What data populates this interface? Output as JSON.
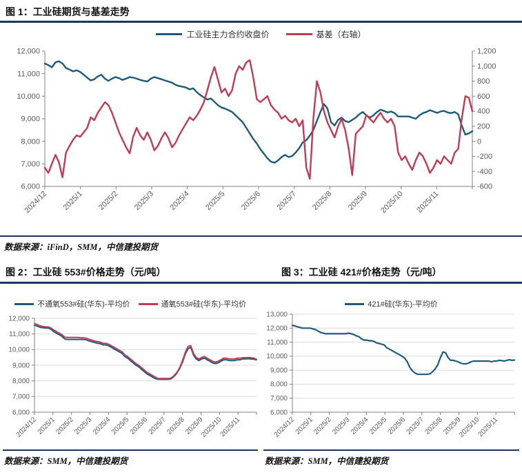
{
  "colors": {
    "navy_rule": "#17375e",
    "blue_line": "#1b5a7a",
    "red_line": "#c13a51",
    "axis_line": "#808080",
    "axis_text": "#595959",
    "grid": "#d9d9d9"
  },
  "figure1": {
    "title": "图 1：工业硅期货与基差走势",
    "source": "数据来源：iFinD，SMM，中信建投期货"
  },
  "figure2": {
    "title": "图 2：工业硅 553#价格走势（元/吨）",
    "source": "数据来源：SMM，中信建投期货"
  },
  "figure3": {
    "title": "图 3：工业硅 421#价格走势（元/吨）",
    "source": "数据来源：SMM，中信建投期货"
  },
  "chart_data": [
    {
      "type": "line",
      "title": "工业硅期货与基差走势",
      "grid": false,
      "legend_position": "top",
      "x_tick_labels": [
        "2024/12",
        "2025/1",
        "2025/2",
        "2025/3",
        "2025/4",
        "2025/5",
        "2025/6",
        "2025/7",
        "2025/8",
        "2025/9",
        "2025/10",
        "2025/11"
      ],
      "left_axis_range": [
        6000,
        12000
      ],
      "right_axis_range": [
        -600,
        1200
      ],
      "left_ticks": {
        "values": [
          12000,
          11000,
          10000,
          9000,
          8000,
          7000,
          6000
        ],
        "labels": [
          "12,000",
          "11,000",
          "10,000",
          "9,000",
          "8,000",
          "7,000",
          "6,000"
        ]
      },
      "right_ticks": {
        "values": [
          1200,
          1000,
          800,
          600,
          400,
          200,
          0,
          -200,
          -400,
          -600
        ],
        "labels": [
          "1,200",
          "1,000",
          "800",
          "600",
          "400",
          "200",
          "0",
          "-200",
          "-400",
          "-600"
        ]
      },
      "legend": [
        {
          "label": "工业硅主力合约收盘价",
          "color": "#1b5a7a"
        },
        {
          "label": "基差（右轴）",
          "color": "#c13a51"
        }
      ],
      "series": [
        {
          "name": "工业硅主力合约收盘价",
          "axis": "left",
          "color": "#1b5a7a",
          "values": [
            11450,
            11380,
            11280,
            11500,
            11550,
            11450,
            11250,
            11180,
            11100,
            11150,
            11080,
            10950,
            10820,
            10700,
            10750,
            10880,
            10950,
            10780,
            10680,
            10780,
            10850,
            10800,
            10720,
            10780,
            10850,
            10820,
            10780,
            10720,
            10680,
            10650,
            10780,
            10850,
            10800,
            10750,
            10700,
            10650,
            10600,
            10500,
            10450,
            10420,
            10380,
            10300,
            10350,
            10180,
            10050,
            9950,
            9850,
            9900,
            9750,
            9600,
            9500,
            9450,
            9380,
            9300,
            9150,
            9000,
            8850,
            8600,
            8350,
            8100,
            7900,
            7650,
            7450,
            7250,
            7100,
            7050,
            7150,
            7300,
            7400,
            7300,
            7350,
            7500,
            7700,
            7950,
            8050,
            8250,
            8500,
            8900,
            9300,
            9650,
            9450,
            8850,
            8700,
            8950,
            9050,
            8900,
            8850,
            8950,
            9050,
            9200,
            9300,
            9150,
            9050,
            9150,
            9300,
            9400,
            9350,
            9280,
            9320,
            9250,
            9100,
            9100,
            9100,
            9100,
            9050,
            9000,
            9150,
            9250,
            9300,
            9380,
            9320,
            9260,
            9320,
            9350,
            9280,
            9250,
            9300,
            9200,
            8700,
            8300,
            8350,
            8450
          ]
        },
        {
          "name": "基差（右轴）",
          "axis": "right",
          "color": "#c13a51",
          "values": [
            -350,
            -420,
            -300,
            -180,
            -280,
            -480,
            -150,
            -60,
            20,
            80,
            60,
            120,
            180,
            320,
            280,
            380,
            450,
            520,
            480,
            380,
            250,
            120,
            20,
            -80,
            -160,
            60,
            180,
            80,
            20,
            120,
            20,
            -120,
            -60,
            40,
            120,
            40,
            -80,
            -20,
            80,
            160,
            240,
            320,
            280,
            340,
            420,
            520,
            680,
            850,
            990,
            820,
            650,
            700,
            600,
            680,
            900,
            1000,
            950,
            1050,
            1080,
            850,
            560,
            520,
            560,
            600,
            480,
            420,
            380,
            300,
            340,
            280,
            250,
            300,
            200,
            280,
            -350,
            -500,
            300,
            800,
            650,
            400,
            250,
            150,
            50,
            200,
            300,
            150,
            -100,
            -450,
            100,
            150,
            200,
            350,
            300,
            250,
            320,
            380,
            300,
            250,
            300,
            200,
            -150,
            -250,
            -200,
            -300,
            -380,
            -250,
            -150,
            -200,
            -300,
            -420,
            -350,
            -250,
            -300,
            -200,
            -250,
            -300,
            -150,
            -100,
            300,
            600,
            580,
            400
          ]
        }
      ]
    },
    {
      "type": "line",
      "title": "工业硅 553#价格走势（元/吨）",
      "grid": true,
      "legend_position": "top",
      "x_tick_labels": [
        "2024/12",
        "2025/1",
        "2025/2",
        "2025/3",
        "2025/4",
        "2025/5",
        "2025/6",
        "2025/7",
        "2025/8",
        "2025/9",
        "2025/10",
        "2025/11"
      ],
      "left_axis_range": [
        6000,
        12000
      ],
      "left_ticks": {
        "values": [
          12000,
          11000,
          10000,
          9000,
          8000,
          7000,
          6000
        ],
        "labels": [
          "12,000",
          "11,000",
          "10,000",
          "9,000",
          "8,000",
          "7,000",
          "6,000"
        ]
      },
      "legend": [
        {
          "label": "不通氧553#硅(华东)-平均价",
          "color": "#1b5a7a"
        },
        {
          "label": "通氧553#硅(华东)-平均价",
          "color": "#c13a51"
        }
      ],
      "series": [
        {
          "name": "不通氧553#硅(华东)-平均价",
          "axis": "left",
          "color": "#1b5a7a",
          "values": [
            11550,
            11500,
            11420,
            11400,
            11380,
            11380,
            11300,
            11150,
            11050,
            10950,
            10850,
            10680,
            10650,
            10650,
            10650,
            10650,
            10650,
            10650,
            10650,
            10620,
            10550,
            10500,
            10450,
            10400,
            10380,
            10300,
            10300,
            10250,
            10150,
            10050,
            9950,
            9850,
            9750,
            9550,
            9450,
            9300,
            9150,
            9000,
            8900,
            8750,
            8600,
            8450,
            8350,
            8250,
            8150,
            8100,
            8100,
            8100,
            8100,
            8100,
            8150,
            8300,
            8500,
            8800,
            9200,
            9700,
            10050,
            10150,
            9650,
            9400,
            9300,
            9400,
            9450,
            9350,
            9250,
            9150,
            9100,
            9150,
            9250,
            9350,
            9350,
            9300,
            9300,
            9300,
            9350,
            9350,
            9400,
            9400,
            9420,
            9400,
            9380,
            9350
          ]
        },
        {
          "name": "通氧553#硅(华东)-平均价",
          "axis": "left",
          "color": "#c13a51",
          "values": [
            11650,
            11600,
            11520,
            11480,
            11450,
            11450,
            11380,
            11250,
            11150,
            11050,
            10950,
            10800,
            10780,
            10780,
            10780,
            10780,
            10780,
            10750,
            10750,
            10720,
            10650,
            10600,
            10550,
            10500,
            10480,
            10400,
            10400,
            10350,
            10250,
            10150,
            10050,
            9950,
            9850,
            9650,
            9550,
            9400,
            9250,
            9100,
            9000,
            8850,
            8700,
            8550,
            8450,
            8350,
            8250,
            8150,
            8150,
            8150,
            8150,
            8150,
            8200,
            8350,
            8550,
            8850,
            9300,
            9800,
            10200,
            10250,
            9750,
            9500,
            9400,
            9500,
            9550,
            9450,
            9350,
            9250,
            9200,
            9250,
            9350,
            9450,
            9450,
            9400,
            9400,
            9400,
            9450,
            9450,
            9480,
            9480,
            9500,
            9480,
            9450,
            9380
          ]
        }
      ]
    },
    {
      "type": "line",
      "title": "工业硅 421#价格走势（元/吨）",
      "grid": true,
      "legend_position": "top",
      "x_tick_labels": [
        "2024/12",
        "2025/1",
        "2025/2",
        "2025/3",
        "2025/4",
        "2025/5",
        "2025/6",
        "2025/7",
        "2025/8",
        "2025/9",
        "2025/10",
        "2025/11"
      ],
      "left_axis_range": [
        6000,
        13000
      ],
      "left_ticks": {
        "values": [
          13000,
          12000,
          11000,
          10000,
          9000,
          8000,
          7000,
          6000
        ],
        "labels": [
          "13,000",
          "12,000",
          "11,000",
          "10,000",
          "9,000",
          "8,000",
          "7,000",
          "6,000"
        ]
      },
      "legend": [
        {
          "label": "421#硅(华东)-平均价",
          "color": "#1b5a7a"
        }
      ],
      "series": [
        {
          "name": "421#硅(华东)-平均价",
          "axis": "left",
          "color": "#1b5a7a",
          "values": [
            12200,
            12150,
            12100,
            12050,
            12000,
            12000,
            12000,
            12000,
            11950,
            11900,
            11800,
            11700,
            11650,
            11600,
            11600,
            11600,
            11600,
            11600,
            11600,
            11600,
            11600,
            11600,
            11650,
            11600,
            11550,
            11450,
            11400,
            11250,
            11150,
            11150,
            11100,
            11100,
            11050,
            10950,
            10900,
            10850,
            10800,
            10600,
            10500,
            10400,
            10300,
            10200,
            10100,
            10000,
            9850,
            9600,
            9200,
            8950,
            8800,
            8700,
            8700,
            8700,
            8700,
            8700,
            8750,
            8900,
            9100,
            9400,
            9900,
            10300,
            10250,
            9900,
            9700,
            9700,
            9650,
            9600,
            9500,
            9450,
            9450,
            9500,
            9600,
            9650,
            9650,
            9650,
            9650,
            9650,
            9650,
            9650,
            9600,
            9650,
            9650,
            9700,
            9680,
            9650,
            9700,
            9750,
            9700,
            9720
          ]
        }
      ]
    }
  ]
}
